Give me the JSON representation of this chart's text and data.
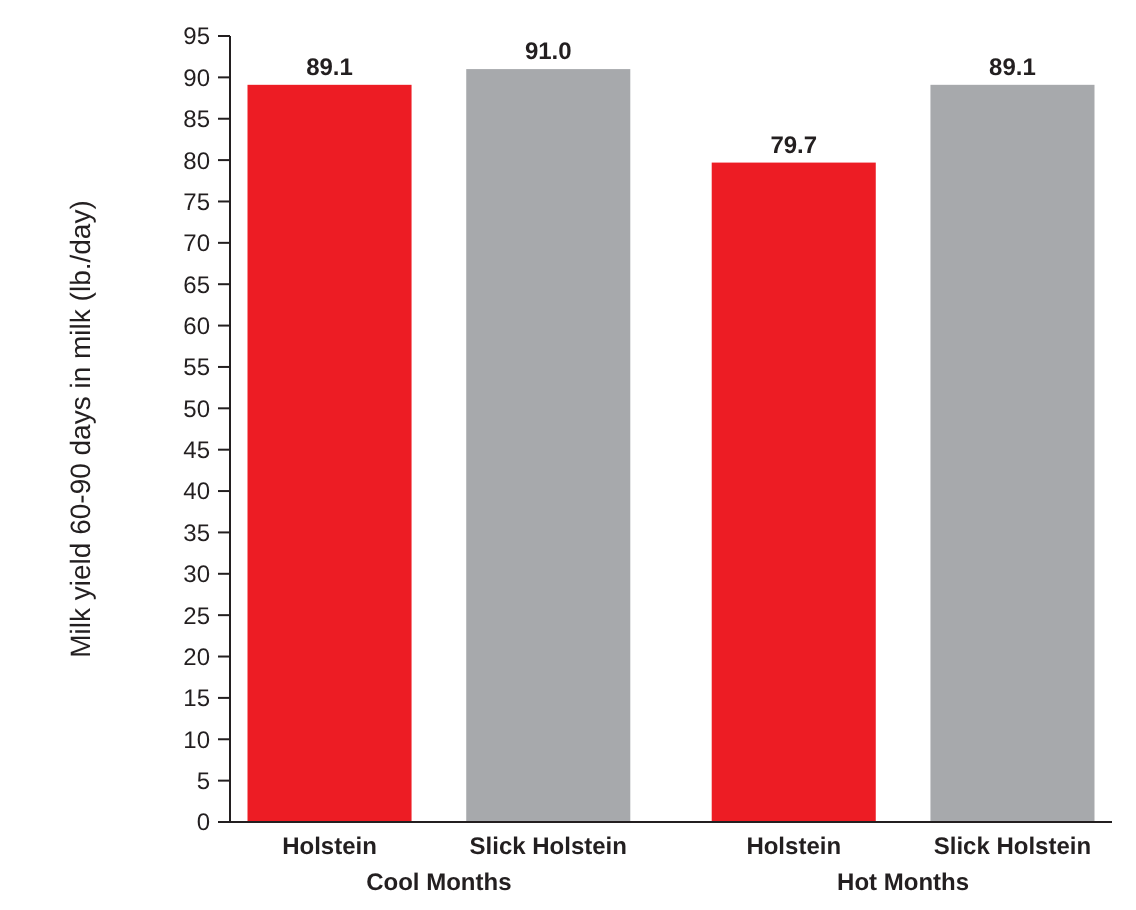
{
  "chart_data": {
    "type": "bar",
    "ylabel": "Milk yield 60-90 days in milk (lb./day)",
    "categories": [
      "Cool Months",
      "Hot Months"
    ],
    "series": [
      {
        "name": "Holstein",
        "color": "#ed1c24",
        "values": [
          89.1,
          79.7
        ],
        "value_labels": [
          "89.1",
          "79.7"
        ]
      },
      {
        "name": "Slick Holstein",
        "color": "#a7a9ac",
        "values": [
          91.0,
          89.1
        ],
        "value_labels": [
          "91.0",
          "89.1"
        ]
      }
    ],
    "ylim": [
      0,
      95
    ],
    "yticks": [
      0,
      5,
      10,
      15,
      20,
      25,
      30,
      35,
      40,
      45,
      50,
      55,
      60,
      65,
      70,
      75,
      80,
      85,
      90,
      95
    ],
    "grid": false
  }
}
